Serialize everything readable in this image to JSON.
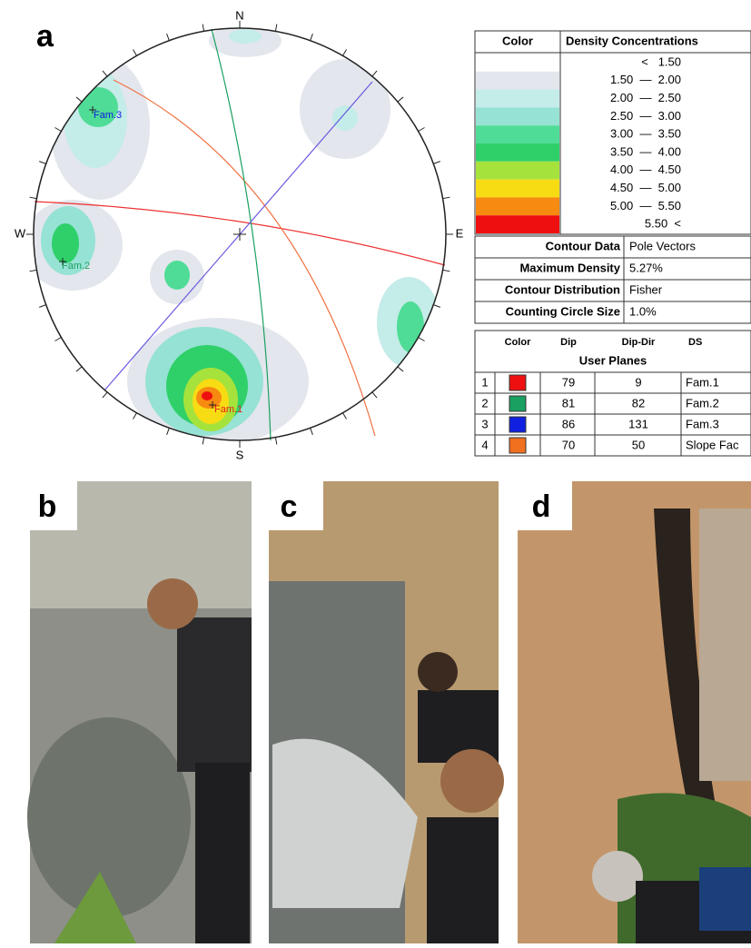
{
  "panels": {
    "a": "a",
    "b": "b",
    "c": "c",
    "d": "d"
  },
  "stereonet": {
    "north": "N",
    "east": "E",
    "south": "S",
    "west": "W",
    "poles": [
      "Fam.1",
      "Fam.2",
      "Fam.3"
    ]
  },
  "density_table": {
    "headers": [
      "Color",
      "Density Concentrations"
    ],
    "rows": [
      {
        "color": "#ffffff",
        "range": "<   1.50"
      },
      {
        "color": "#e3e6ec",
        "range": "1.50  —  2.00"
      },
      {
        "color": "#c4ece8",
        "range": "2.00  —  2.50"
      },
      {
        "color": "#96e2d4",
        "range": "2.50  —  3.00"
      },
      {
        "color": "#4fdc96",
        "range": "3.00  —  3.50"
      },
      {
        "color": "#2fd06a",
        "range": "3.50  —  4.00"
      },
      {
        "color": "#a6e23c",
        "range": "4.00  —  4.50"
      },
      {
        "color": "#f7dc14",
        "range": "4.50  —  5.00"
      },
      {
        "color": "#f78a10",
        "range": "5.00  —  5.50"
      },
      {
        "color": "#ee1010",
        "range": "5.50  <"
      }
    ]
  },
  "contour_table": {
    "rows": [
      [
        "Contour Data",
        "Pole Vectors"
      ],
      [
        "Maximum Density",
        "5.27%"
      ],
      [
        "Contour Distribution",
        "Fisher"
      ],
      [
        "Counting Circle Size",
        "1.0%"
      ]
    ]
  },
  "planes_table": {
    "headers": [
      "Color",
      "Dip",
      "Dip-Dir",
      "DS"
    ],
    "title": "User Planes",
    "rows": [
      {
        "id": "1",
        "color": "#ee1010",
        "dip": "79",
        "dip_dir": "9",
        "ds": "Fam.1"
      },
      {
        "id": "2",
        "color": "#1aa060",
        "dip": "81",
        "dip_dir": "82",
        "ds": "Fam.2"
      },
      {
        "id": "3",
        "color": "#1020e0",
        "dip": "86",
        "dip_dir": "131",
        "ds": "Fam.3"
      },
      {
        "id": "4",
        "color": "#f07020",
        "dip": "70",
        "dip_dir": "50",
        "ds": "Slope Fac"
      }
    ]
  }
}
